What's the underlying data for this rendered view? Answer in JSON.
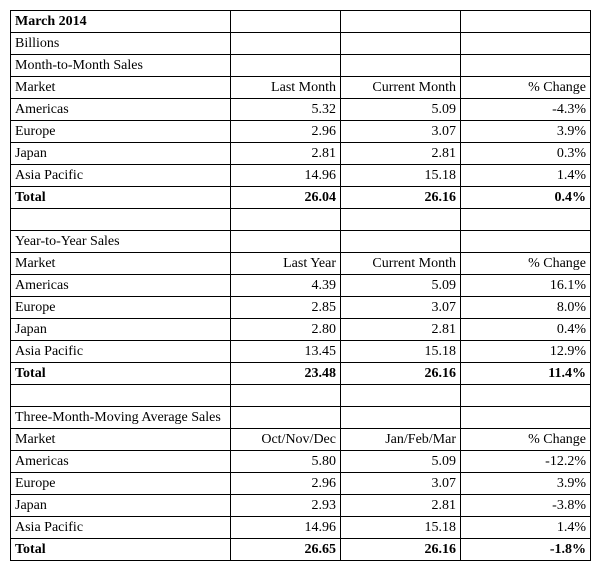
{
  "header": {
    "title": "March 2014",
    "unit": "Billions"
  },
  "sections": [
    {
      "title": "Month-to-Month Sales",
      "columns": [
        "Market",
        "Last Month",
        "Current Month",
        "% Change"
      ],
      "rows": [
        {
          "market": "Americas",
          "a": "5.32",
          "b": "5.09",
          "pct": "-4.3%"
        },
        {
          "market": "Europe",
          "a": "2.96",
          "b": "3.07",
          "pct": "3.9%"
        },
        {
          "market": "Japan",
          "a": "2.81",
          "b": "2.81",
          "pct": "0.3%"
        },
        {
          "market": "Asia Pacific",
          "a": "14.96",
          "b": "15.18",
          "pct": "1.4%"
        }
      ],
      "total": {
        "label": "Total",
        "a": "26.04",
        "b": "26.16",
        "pct": "0.4%"
      }
    },
    {
      "title": "Year-to-Year Sales",
      "columns": [
        "Market",
        "Last Year",
        "Current Month",
        "% Change"
      ],
      "rows": [
        {
          "market": "Americas",
          "a": "4.39",
          "b": "5.09",
          "pct": "16.1%"
        },
        {
          "market": "Europe",
          "a": "2.85",
          "b": "3.07",
          "pct": "8.0%"
        },
        {
          "market": "Japan",
          "a": "2.80",
          "b": "2.81",
          "pct": "0.4%"
        },
        {
          "market": "Asia Pacific",
          "a": "13.45",
          "b": "15.18",
          "pct": "12.9%"
        }
      ],
      "total": {
        "label": "Total",
        "a": "23.48",
        "b": "26.16",
        "pct": "11.4%"
      }
    },
    {
      "title": "Three-Month-Moving Average Sales",
      "columns": [
        "Market",
        "Oct/Nov/Dec",
        "Jan/Feb/Mar",
        "% Change"
      ],
      "rows": [
        {
          "market": "Americas",
          "a": "5.80",
          "b": "5.09",
          "pct": "-12.2%"
        },
        {
          "market": "Europe",
          "a": "2.96",
          "b": "3.07",
          "pct": "3.9%"
        },
        {
          "market": "Japan",
          "a": "2.93",
          "b": "2.81",
          "pct": "-3.8%"
        },
        {
          "market": "Asia Pacific",
          "a": "14.96",
          "b": "15.18",
          "pct": "1.4%"
        }
      ],
      "total": {
        "label": "Total",
        "a": "26.65",
        "b": "26.16",
        "pct": "-1.8%"
      }
    }
  ]
}
